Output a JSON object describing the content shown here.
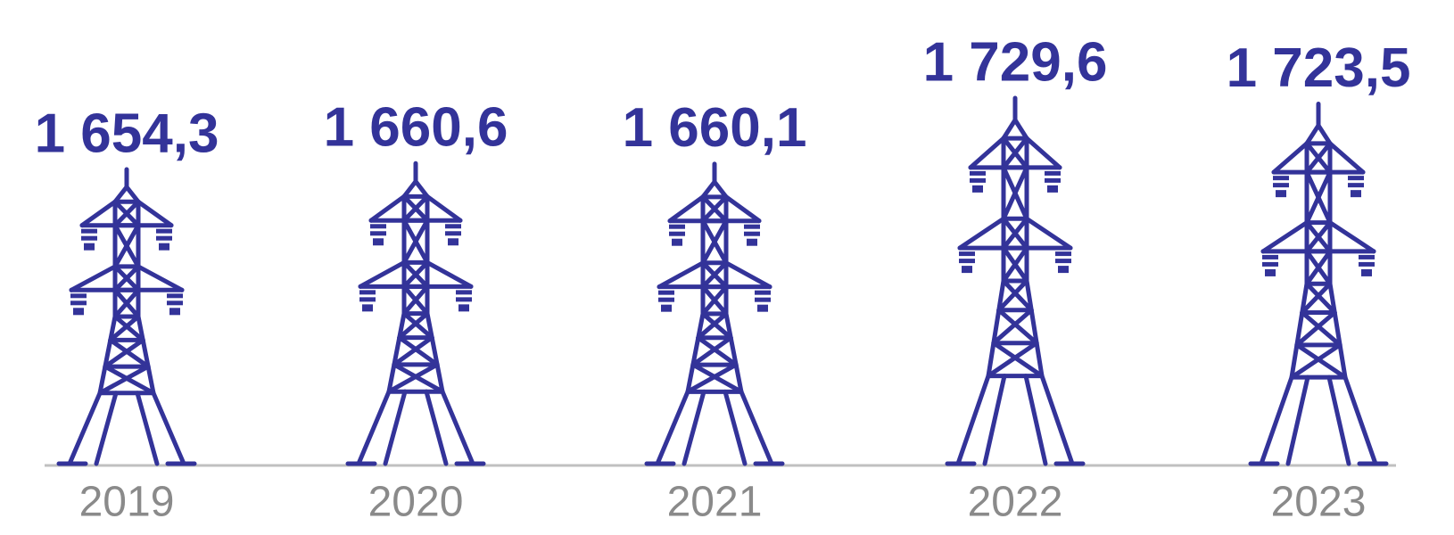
{
  "chart_data": {
    "type": "pictograph",
    "categories": [
      "2019",
      "2020",
      "2021",
      "2022",
      "2023"
    ],
    "values": [
      1654.3,
      1660.6,
      1660.1,
      1729.6,
      1723.5
    ],
    "value_labels": [
      "1 654,3",
      "1 660,6",
      "1 660,1",
      "1 729,6",
      "1 723,5"
    ],
    "color": "#333399"
  }
}
